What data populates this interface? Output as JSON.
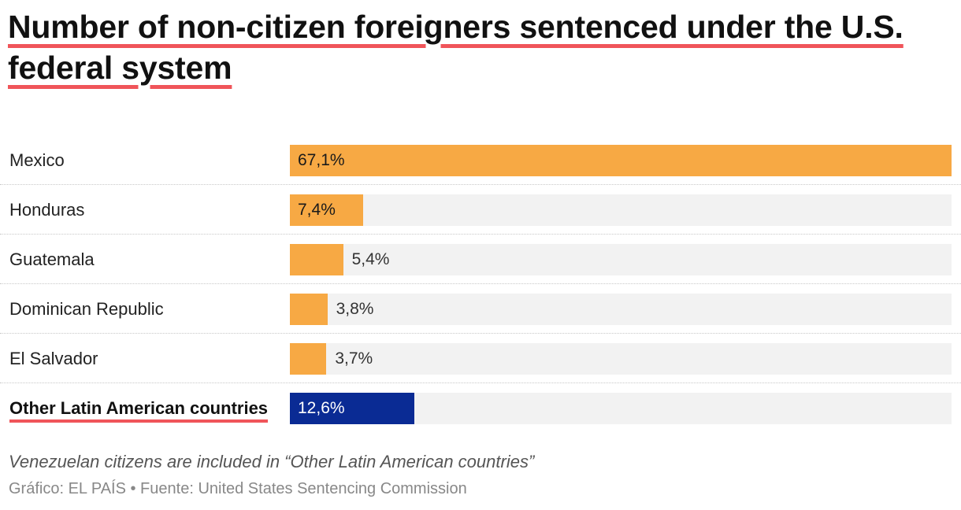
{
  "chart_data": {
    "type": "bar",
    "orientation": "horizontal",
    "title_lines": [
      "Number of non-citizen foreigners sentenced under the U.S.",
      "federal system"
    ],
    "categories": [
      "Mexico",
      "Honduras",
      "Guatemala",
      "Dominican Republic",
      "El Salvador",
      "Other Latin American countries"
    ],
    "values": [
      67.1,
      7.4,
      5.4,
      3.8,
      3.7,
      12.6
    ],
    "value_labels": [
      "67,1%",
      "7,4%",
      "5,4%",
      "3,8%",
      "3,7%",
      "12,6%"
    ],
    "highlighted_category": "Other Latin American countries",
    "xlim": [
      0,
      67.1
    ],
    "grid": false,
    "legend": "none",
    "note": "Venezuelan citizens are included in “Other Latin American countries”",
    "source": "Gráfico: EL PAÍS • Fuente: United States Sentencing Commission"
  },
  "colors": {
    "bar": "#f7a944",
    "bar_highlight": "#0a2b94",
    "track": "#f2f2f2",
    "underline": "#f0555a"
  }
}
